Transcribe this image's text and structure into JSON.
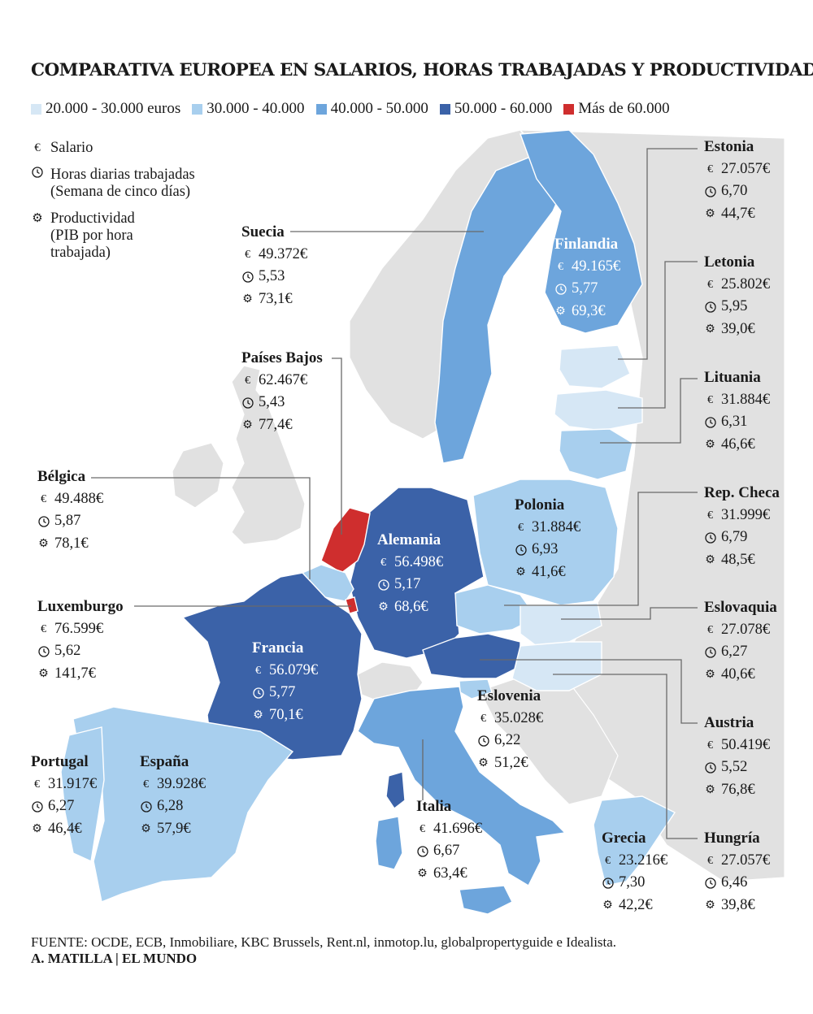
{
  "title": "COMPARATIVA EUROPEA EN SALARIOS, HORAS TRABAJADAS Y PRODUCTIVIDAD",
  "colors": {
    "band_20_30": "#d6e7f5",
    "band_30_40": "#a8cfee",
    "band_40_50": "#6da5dc",
    "band_50_60": "#3b62a8",
    "band_60_plus": "#cf2e2e",
    "non_eu": "#e1e1e1"
  },
  "legend": [
    {
      "label": "20.000 - 30.000 euros",
      "color": "#d6e7f5"
    },
    {
      "label": "30.000 - 40.000",
      "color": "#a8cfee"
    },
    {
      "label": "40.000 - 50.000",
      "color": "#6da5dc"
    },
    {
      "label": "50.000 - 60.000",
      "color": "#3b62a8"
    },
    {
      "label": "Más de 60.000",
      "color": "#cf2e2e"
    }
  ],
  "key": {
    "salary_symbol": "€",
    "salary": "Salario",
    "hours_line1": "Horas diarias trabajadas",
    "hours_line2": "(Semana de cinco días)",
    "productivity_line1": "Productividad",
    "productivity_line2": "(PIB por hora",
    "productivity_line3": "trabajada)",
    "icons": [
      "euro-icon",
      "clock-icon",
      "gear-icon"
    ]
  },
  "countries": {
    "suecia": {
      "name": "Suecia",
      "salary": "49.372€",
      "hours": "5,53",
      "productivity": "73,1€"
    },
    "finlandia": {
      "name": "Finlandia",
      "salary": "49.165€",
      "hours": "5,77",
      "productivity": "69,3€"
    },
    "estonia": {
      "name": "Estonia",
      "salary": "27.057€",
      "hours": "6,70",
      "productivity": "44,7€"
    },
    "letonia": {
      "name": "Letonia",
      "salary": "25.802€",
      "hours": "5,95",
      "productivity": "39,0€"
    },
    "lituania": {
      "name": "Lituania",
      "salary": "31.884€",
      "hours": "6,31",
      "productivity": "46,6€"
    },
    "paises_bajos": {
      "name": "Países Bajos",
      "salary": "62.467€",
      "hours": "5,43",
      "productivity": "77,4€"
    },
    "belgica": {
      "name": "Bélgica",
      "salary": "49.488€",
      "hours": "5,87",
      "productivity": "78,1€"
    },
    "alemania": {
      "name": "Alemania",
      "salary": "56.498€",
      "hours": "5,17",
      "productivity": "68,6€"
    },
    "polonia": {
      "name": "Polonia",
      "salary": "31.884€",
      "hours": "6,93",
      "productivity": "41,6€"
    },
    "rep_checa": {
      "name": "Rep. Checa",
      "salary": "31.999€",
      "hours": "6,79",
      "productivity": "48,5€"
    },
    "luxemburgo": {
      "name": "Luxemburgo",
      "salary": "76.599€",
      "hours": "5,62",
      "productivity": "141,7€"
    },
    "eslovaquia": {
      "name": "Eslovaquia",
      "salary": "27.078€",
      "hours": "6,27",
      "productivity": "40,6€"
    },
    "francia": {
      "name": "Francia",
      "salary": "56.079€",
      "hours": "5,77",
      "productivity": "70,1€"
    },
    "eslovenia": {
      "name": "Eslovenia",
      "salary": "35.028€",
      "hours": "6,22",
      "productivity": "51,2€"
    },
    "austria": {
      "name": "Austria",
      "salary": "50.419€",
      "hours": "5,52",
      "productivity": "76,8€"
    },
    "portugal": {
      "name": "Portugal",
      "salary": "31.917€",
      "hours": "6,27",
      "productivity": "46,4€"
    },
    "espana": {
      "name": "España",
      "salary": "39.928€",
      "hours": "6,28",
      "productivity": "57,9€"
    },
    "italia": {
      "name": "Italia",
      "salary": "41.696€",
      "hours": "6,67",
      "productivity": "63,4€"
    },
    "grecia": {
      "name": "Grecia",
      "salary": "23.216€",
      "hours": "7,30",
      "productivity": "42,2€"
    },
    "hungria": {
      "name": "Hungría",
      "salary": "27.057€",
      "hours": "6,46",
      "productivity": "39,8€"
    }
  },
  "source": "FUENTE: OCDE, ECB, Inmobiliare, KBC Brussels, Rent.nl, inmotop.lu, globalpropertyguide e Idealista.",
  "credit": "A. MATILLA | EL MUNDO"
}
